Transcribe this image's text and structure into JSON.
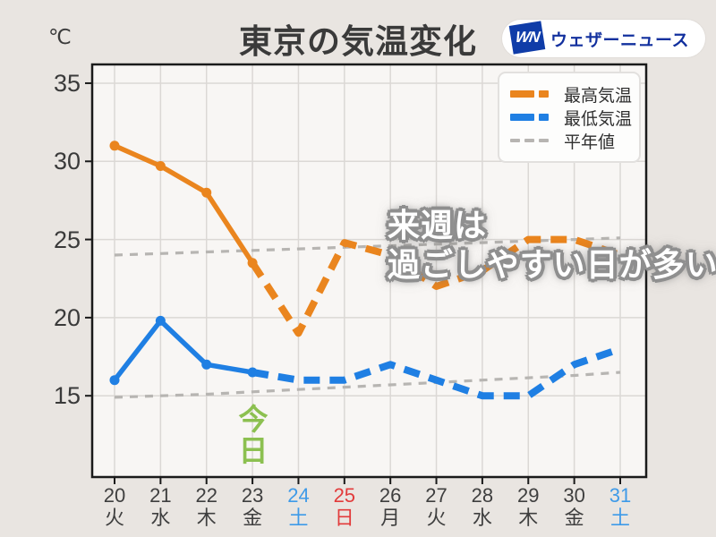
{
  "header": {
    "unit_label": "℃",
    "title": "東京の気温変化",
    "logo_mark": "WN",
    "logo_text": "ウェザーニュース"
  },
  "legend": {
    "items": [
      {
        "label": "最高気温",
        "color": "#ea851e"
      },
      {
        "label": "最低気温",
        "color": "#1f7fe3"
      },
      {
        "label": "平年値",
        "color": "#b7b5b2"
      }
    ]
  },
  "annotation": {
    "line1": "来週は",
    "line2": "過ごしやすい日が多い"
  },
  "today_label": "今日",
  "colors": {
    "background": "#e9e5e1",
    "plot_background": "#f8f6f4",
    "grid": "#dbd8d5",
    "axis": "#1a1a1a",
    "text_dark": "#3f3f3f",
    "saturday_blue": "#3e9ae8",
    "sunday_red": "#e23b3b",
    "today_green": "#8cc050",
    "max_orange": "#ea851e",
    "min_blue": "#1f7fe3",
    "normal_gray": "#b7b5b2"
  },
  "chart_data": {
    "type": "line",
    "title": "東京の気温変化",
    "ylabel": "℃",
    "ylim": [
      9.8,
      36.2
    ],
    "yticks": [
      15,
      20,
      25,
      30,
      35
    ],
    "grid": true,
    "legend_position": "top-right",
    "today_index": 3,
    "solid_until_index": 3,
    "x_labels": [
      {
        "day": "20",
        "weekday": "火",
        "color": "#3f3f3f"
      },
      {
        "day": "21",
        "weekday": "水",
        "color": "#3f3f3f"
      },
      {
        "day": "22",
        "weekday": "木",
        "color": "#3f3f3f"
      },
      {
        "day": "23",
        "weekday": "金",
        "color": "#3f3f3f"
      },
      {
        "day": "24",
        "weekday": "土",
        "color": "#3e9ae8"
      },
      {
        "day": "25",
        "weekday": "日",
        "color": "#e23b3b"
      },
      {
        "day": "26",
        "weekday": "月",
        "color": "#3f3f3f"
      },
      {
        "day": "27",
        "weekday": "火",
        "color": "#3f3f3f"
      },
      {
        "day": "28",
        "weekday": "水",
        "color": "#3f3f3f"
      },
      {
        "day": "29",
        "weekday": "木",
        "color": "#3f3f3f"
      },
      {
        "day": "30",
        "weekday": "金",
        "color": "#3f3f3f"
      },
      {
        "day": "31",
        "weekday": "土",
        "color": "#3e9ae8"
      }
    ],
    "series": [
      {
        "name": "最高気温",
        "color": "#ea851e",
        "style": "solid-then-dashed",
        "values": [
          31,
          29.7,
          28,
          23.5,
          19,
          24.8,
          24,
          22,
          23,
          25,
          25,
          24
        ]
      },
      {
        "name": "最低気温",
        "color": "#1f7fe3",
        "style": "solid-then-dashed",
        "values": [
          16,
          19.8,
          17,
          16.5,
          16,
          16,
          17,
          16,
          15,
          15,
          17,
          18
        ]
      },
      {
        "name": "平年値(最高)",
        "color": "#b7b5b2",
        "style": "dashed-thin",
        "values": [
          24.0,
          24.1,
          24.2,
          24.3,
          24.4,
          24.5,
          24.6,
          24.7,
          24.8,
          24.9,
          25.0,
          25.1
        ]
      },
      {
        "name": "平年値(最低)",
        "color": "#b7b5b2",
        "style": "dashed-thin",
        "values": [
          14.9,
          15.0,
          15.1,
          15.25,
          15.4,
          15.55,
          15.7,
          15.85,
          16.0,
          16.15,
          16.3,
          16.5
        ]
      }
    ]
  }
}
